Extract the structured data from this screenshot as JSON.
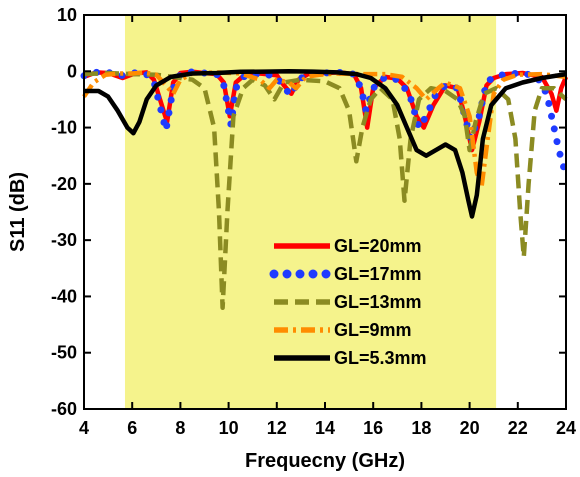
{
  "chart_data": {
    "type": "line",
    "xlabel": "Frequecny (GHz)",
    "ylabel": "S11 (dB)",
    "xlim": [
      4,
      24
    ],
    "ylim": [
      -60,
      10
    ],
    "xticks": [
      4,
      6,
      8,
      10,
      12,
      14,
      16,
      18,
      20,
      22,
      24
    ],
    "yticks": [
      10,
      0,
      -10,
      -20,
      -30,
      -40,
      -50,
      -60
    ],
    "grid": false,
    "legend_position": "lower-center",
    "highlight_band": {
      "x_from": 5.7,
      "x_to": 21.1,
      "color": "#f5f38c"
    },
    "series": [
      {
        "name": "GL=20mm",
        "color": "#ff0000",
        "style": "solid",
        "points": [
          [
            4,
            -1
          ],
          [
            4.5,
            -0.2
          ],
          [
            5,
            -0.3
          ],
          [
            5.6,
            -1.2
          ],
          [
            6.1,
            -0.4
          ],
          [
            6.6,
            -0.2
          ],
          [
            6.9,
            -1.5
          ],
          [
            7.3,
            -7
          ],
          [
            7.45,
            -9
          ],
          [
            7.7,
            -2
          ],
          [
            8,
            -0.3
          ],
          [
            8.5,
            -0.1
          ],
          [
            9,
            -0.3
          ],
          [
            9.5,
            -0.5
          ],
          [
            9.8,
            -2
          ],
          [
            10.05,
            -8
          ],
          [
            10.3,
            -2
          ],
          [
            10.7,
            -0.5
          ],
          [
            11.3,
            -0.4
          ],
          [
            12,
            -0.7
          ],
          [
            12.3,
            -2.5
          ],
          [
            12.6,
            -4
          ],
          [
            12.9,
            -1.5
          ],
          [
            13.3,
            -0.5
          ],
          [
            14,
            -0.3
          ],
          [
            14.6,
            -0.2
          ],
          [
            15.2,
            -0.5
          ],
          [
            15.5,
            -3
          ],
          [
            15.75,
            -10
          ],
          [
            16,
            -3
          ],
          [
            16.5,
            -1
          ],
          [
            17,
            -1.3
          ],
          [
            17.4,
            -3
          ],
          [
            17.8,
            -8
          ],
          [
            18.1,
            -10
          ],
          [
            18.5,
            -6
          ],
          [
            19,
            -2.5
          ],
          [
            19.5,
            -3
          ],
          [
            19.8,
            -8
          ],
          [
            20.1,
            -14
          ],
          [
            20.4,
            -9
          ],
          [
            20.7,
            -2.5
          ],
          [
            21,
            -1.2
          ],
          [
            21.5,
            -0.5
          ],
          [
            22.2,
            -0.3
          ],
          [
            23,
            -1
          ],
          [
            23.4,
            -4
          ],
          [
            23.6,
            -7
          ],
          [
            23.8,
            -3
          ],
          [
            24,
            -1
          ]
        ]
      },
      {
        "name": "GL=17mm",
        "color": "#1f3bff",
        "style": "dotted",
        "points": [
          [
            4,
            -0.8
          ],
          [
            4.5,
            -0.2
          ],
          [
            5,
            -0.2
          ],
          [
            5.5,
            -0.8
          ],
          [
            6,
            -0.3
          ],
          [
            6.5,
            -0.2
          ],
          [
            6.9,
            -1.8
          ],
          [
            7.2,
            -7
          ],
          [
            7.4,
            -10.5
          ],
          [
            7.7,
            -3
          ],
          [
            8,
            -0.5
          ],
          [
            8.5,
            -0.1
          ],
          [
            9,
            -0.3
          ],
          [
            9.5,
            -0.5
          ],
          [
            9.8,
            -2.5
          ],
          [
            10.1,
            -9.5
          ],
          [
            10.3,
            -3
          ],
          [
            10.7,
            -0.6
          ],
          [
            11.5,
            -0.5
          ],
          [
            12,
            -1
          ],
          [
            12.3,
            -3
          ],
          [
            12.6,
            -4.2
          ],
          [
            12.9,
            -1.5
          ],
          [
            13.3,
            -0.5
          ],
          [
            14,
            -0.3
          ],
          [
            14.6,
            -0.2
          ],
          [
            15.2,
            -0.5
          ],
          [
            15.5,
            -3
          ],
          [
            15.7,
            -7
          ],
          [
            16,
            -3
          ],
          [
            16.5,
            -1
          ],
          [
            17,
            -1.5
          ],
          [
            17.5,
            -4
          ],
          [
            17.9,
            -10
          ],
          [
            18.2,
            -8
          ],
          [
            18.6,
            -4
          ],
          [
            19,
            -2.5
          ],
          [
            19.5,
            -3
          ],
          [
            19.8,
            -8
          ],
          [
            20.05,
            -12
          ],
          [
            20.4,
            -8
          ],
          [
            20.7,
            -2
          ],
          [
            21,
            -1
          ],
          [
            21.5,
            -0.5
          ],
          [
            22.2,
            -0.3
          ],
          [
            22.8,
            -1
          ],
          [
            23.2,
            -4
          ],
          [
            23.5,
            -10
          ],
          [
            23.7,
            -14
          ],
          [
            23.9,
            -17
          ],
          [
            24,
            -15
          ]
        ]
      },
      {
        "name": "GL=13mm",
        "color": "#8b8b22",
        "style": "dashed",
        "points": [
          [
            4,
            -0.5
          ],
          [
            5,
            -0.3
          ],
          [
            6,
            -0.5
          ],
          [
            7,
            -0.6
          ],
          [
            8,
            -1.2
          ],
          [
            8.5,
            -1.5
          ],
          [
            9,
            -3
          ],
          [
            9.4,
            -10
          ],
          [
            9.6,
            -25
          ],
          [
            9.75,
            -42
          ],
          [
            9.95,
            -25
          ],
          [
            10.2,
            -8
          ],
          [
            10.6,
            -3
          ],
          [
            11,
            -1.5
          ],
          [
            11.5,
            -2.5
          ],
          [
            11.9,
            -5
          ],
          [
            12.3,
            -2
          ],
          [
            13,
            -1.5
          ],
          [
            14,
            -1.8
          ],
          [
            14.6,
            -3
          ],
          [
            15,
            -7
          ],
          [
            15.3,
            -16
          ],
          [
            15.55,
            -10
          ],
          [
            15.9,
            -5
          ],
          [
            16.3,
            -3
          ],
          [
            16.8,
            -5
          ],
          [
            17.1,
            -12
          ],
          [
            17.3,
            -23
          ],
          [
            17.55,
            -12
          ],
          [
            17.9,
            -5
          ],
          [
            18.4,
            -3
          ],
          [
            19,
            -3.5
          ],
          [
            19.5,
            -5
          ],
          [
            19.8,
            -8
          ],
          [
            20,
            -14
          ],
          [
            20.25,
            -9
          ],
          [
            20.6,
            -4
          ],
          [
            21.1,
            -3
          ],
          [
            21.6,
            -5
          ],
          [
            21.9,
            -12
          ],
          [
            22.1,
            -25
          ],
          [
            22.25,
            -33
          ],
          [
            22.45,
            -20
          ],
          [
            22.7,
            -7
          ],
          [
            23,
            -3
          ],
          [
            23.5,
            -3
          ],
          [
            24,
            -5
          ]
        ]
      },
      {
        "name": "GL=9mm",
        "color": "#ff8c00",
        "style": "dashdot",
        "points": [
          [
            4,
            -4.5
          ],
          [
            4.4,
            -2
          ],
          [
            4.9,
            -0.6
          ],
          [
            5.5,
            -0.4
          ],
          [
            6,
            -0.4
          ],
          [
            6.5,
            -0.2
          ],
          [
            7,
            -0.6
          ],
          [
            7.4,
            -2.5
          ],
          [
            7.7,
            -4
          ],
          [
            8,
            -1.5
          ],
          [
            8.5,
            -0.4
          ],
          [
            9.5,
            -0.2
          ],
          [
            10.5,
            -0.4
          ],
          [
            11.3,
            -1.5
          ],
          [
            11.7,
            -3
          ],
          [
            12,
            -1.5
          ],
          [
            12.5,
            -2
          ],
          [
            12.8,
            -3
          ],
          [
            13.2,
            -1
          ],
          [
            13.8,
            -0.6
          ],
          [
            14.5,
            -0.4
          ],
          [
            15.5,
            -0.5
          ],
          [
            16.5,
            -0.5
          ],
          [
            17.2,
            -1
          ],
          [
            17.8,
            -3
          ],
          [
            18.2,
            -5
          ],
          [
            18.7,
            -3
          ],
          [
            19,
            -2
          ],
          [
            19.6,
            -3
          ],
          [
            20,
            -8
          ],
          [
            20.3,
            -18
          ],
          [
            20.5,
            -20.5
          ],
          [
            20.75,
            -12
          ],
          [
            21,
            -4
          ],
          [
            21.4,
            -1.5
          ],
          [
            22,
            -0.6
          ],
          [
            23,
            -0.5
          ],
          [
            24,
            -1
          ]
        ]
      },
      {
        "name": "GL=5.3mm",
        "color": "#000000",
        "style": "solid",
        "points": [
          [
            4,
            -3.5
          ],
          [
            4.6,
            -3.5
          ],
          [
            5,
            -4.5
          ],
          [
            5.4,
            -7
          ],
          [
            5.8,
            -10
          ],
          [
            6.05,
            -11
          ],
          [
            6.3,
            -9
          ],
          [
            6.6,
            -5
          ],
          [
            7,
            -2.5
          ],
          [
            7.6,
            -1
          ],
          [
            8.5,
            -0.4
          ],
          [
            9.5,
            -0.3
          ],
          [
            10.5,
            -0.1
          ],
          [
            11.5,
            -0.05
          ],
          [
            12.5,
            0
          ],
          [
            13.5,
            -0.05
          ],
          [
            14.5,
            -0.2
          ],
          [
            15.3,
            -0.5
          ],
          [
            15.9,
            -1.2
          ],
          [
            16.5,
            -3
          ],
          [
            17,
            -6
          ],
          [
            17.4,
            -10
          ],
          [
            17.8,
            -14
          ],
          [
            18.2,
            -15
          ],
          [
            18.6,
            -14
          ],
          [
            19,
            -13
          ],
          [
            19.4,
            -14
          ],
          [
            19.7,
            -18
          ],
          [
            19.95,
            -23
          ],
          [
            20.1,
            -25.8
          ],
          [
            20.3,
            -22
          ],
          [
            20.55,
            -12
          ],
          [
            20.9,
            -6
          ],
          [
            21.5,
            -3
          ],
          [
            22.2,
            -2
          ],
          [
            23,
            -1.2
          ],
          [
            24,
            -0.5
          ]
        ]
      }
    ]
  }
}
